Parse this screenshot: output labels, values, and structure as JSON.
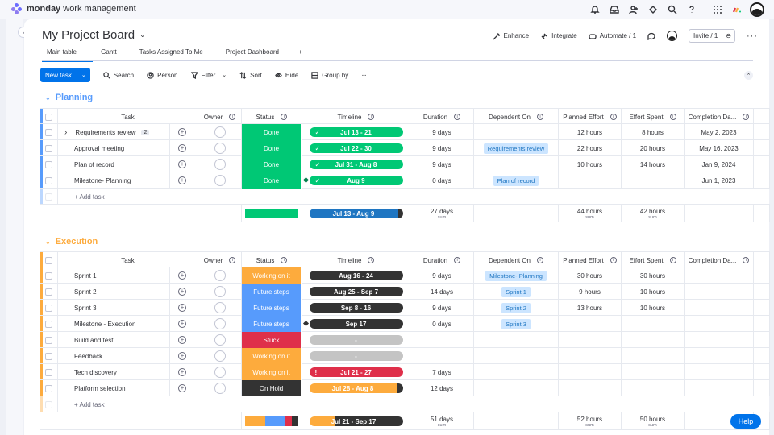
{
  "app": {
    "brand_bold": "monday",
    "brand_rest": " work management",
    "colors": {
      "accent": "#0073ea",
      "done": "#00c875",
      "working": "#fdab3d",
      "future": "#579bfc",
      "stuck": "#df2f4a",
      "onhold": "#333333",
      "planning": "#579bfc",
      "execution": "#fdab3d"
    }
  },
  "board": {
    "title": "My Project Board",
    "actions": {
      "enhance": "Enhance",
      "integrate": "Integrate",
      "automate": "Automate / 1",
      "invite": "Invite / 1"
    },
    "tabs": [
      "Main table",
      "Gantt",
      "Tasks Assigned To Me",
      "Project Dashboard"
    ]
  },
  "toolbar": {
    "new_task": "New task",
    "search": "Search",
    "person": "Person",
    "filter": "Filter",
    "sort": "Sort",
    "hide": "Hide",
    "group_by": "Group by"
  },
  "columns": [
    "Task",
    "Owner",
    "Status",
    "Timeline",
    "Duration",
    "Dependent On",
    "Planned Effort",
    "Effort Spent",
    "Completion Da..."
  ],
  "add_task": "+ Add task",
  "groups": [
    {
      "name": "Planning",
      "rows": [
        {
          "task": "Requirements review",
          "count": "2",
          "status": "Done",
          "timeline": "Jul 13 - 21",
          "duration": "9 days",
          "dependent": "",
          "planned": "12 hours",
          "spent": "8 hours",
          "completion": "May 2, 2023"
        },
        {
          "task": "Approval meeting",
          "count": "",
          "status": "Done",
          "timeline": "Jul 22 - 30",
          "duration": "9 days",
          "dependent": "Requirements review",
          "planned": "22 hours",
          "spent": "20 hours",
          "completion": "May 16, 2023"
        },
        {
          "task": "Plan of record",
          "count": "",
          "status": "Done",
          "timeline": "Jul 31 - Aug 8",
          "duration": "9 days",
          "dependent": "",
          "planned": "10 hours",
          "spent": "14 hours",
          "completion": "Jan 9, 2024"
        },
        {
          "task": "Milestone- Planning",
          "count": "",
          "status": "Done",
          "timeline": "Aug 9",
          "duration": "0 days",
          "dependent": "Plan of record",
          "planned": "",
          "spent": "",
          "completion": "Jun 1, 2023"
        }
      ],
      "summary": {
        "timeline": "Jul 13 - Aug 9",
        "duration": "27 days",
        "planned": "44 hours",
        "spent": "42 hours",
        "sub": "sum"
      }
    },
    {
      "name": "Execution",
      "rows": [
        {
          "task": "Sprint 1",
          "status": "Working on it",
          "timeline": "Aug 16 - 24",
          "duration": "9 days",
          "dependent": "Milestone- Planning",
          "planned": "30 hours",
          "spent": "30 hours"
        },
        {
          "task": "Sprint 2",
          "status": "Future steps",
          "timeline": "Aug 25 - Sep 7",
          "duration": "14 days",
          "dependent": "Sprint 1",
          "planned": "9 hours",
          "spent": "10 hours"
        },
        {
          "task": "Sprint 3",
          "status": "Future steps",
          "timeline": "Sep 8 - 16",
          "duration": "9 days",
          "dependent": "Sprint 2",
          "planned": "13 hours",
          "spent": "10 hours"
        },
        {
          "task": "Milestone - Execution",
          "status": "Future steps",
          "timeline": "Sep 17",
          "duration": "0 days",
          "dependent": "Sprint 3",
          "planned": "",
          "spent": ""
        },
        {
          "task": "Build and test",
          "status": "Stuck",
          "timeline": "-",
          "duration": "",
          "dependent": "",
          "planned": "",
          "spent": ""
        },
        {
          "task": "Feedback",
          "status": "Working on it",
          "timeline": "-",
          "duration": "",
          "dependent": "",
          "planned": "",
          "spent": ""
        },
        {
          "task": "Tech discovery",
          "status": "Working on it",
          "timeline": "Jul 21 - 27",
          "duration": "7 days",
          "dependent": "",
          "planned": "",
          "spent": ""
        },
        {
          "task": "Platform selection",
          "status": "On Hold",
          "timeline": "Jul 28 - Aug 8",
          "duration": "12 days",
          "dependent": "",
          "planned": "",
          "spent": ""
        }
      ],
      "summary": {
        "timeline": "Jul 21 - Sep 17",
        "duration": "51 days",
        "planned": "52 hours",
        "spent": "50 hours",
        "sub": "sum"
      }
    }
  ],
  "help": "Help"
}
